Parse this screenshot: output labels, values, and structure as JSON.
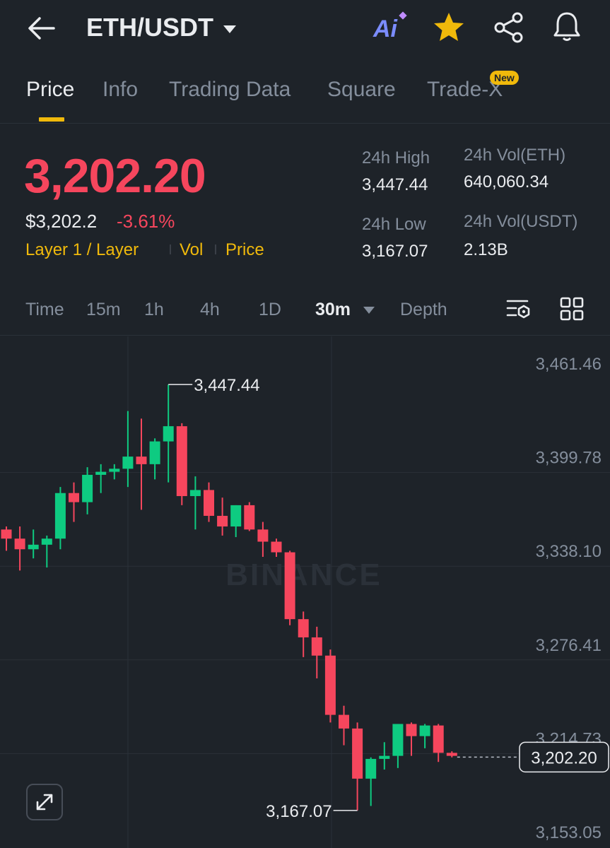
{
  "header": {
    "pair": "ETH/USDT",
    "ai_label": "Ai",
    "icons": [
      "back-arrow-icon",
      "ai-icon",
      "star-icon",
      "share-icon",
      "bell-icon"
    ]
  },
  "tabs": [
    {
      "label": "Price",
      "active": true
    },
    {
      "label": "Info"
    },
    {
      "label": "Trading Data"
    },
    {
      "label": "Square"
    },
    {
      "label": "Trade-X",
      "badge": "New"
    }
  ],
  "ticker": {
    "last_price": "3,202.20",
    "usd_price": "$3,202.2",
    "change_pct": "-3.61%",
    "tags": [
      "Layer 1 / Layer",
      "Vol",
      "Price"
    ],
    "high_label": "24h High",
    "high_value": "3,447.44",
    "low_label": "24h Low",
    "low_value": "3,167.07",
    "vol_base_label": "24h Vol(ETH)",
    "vol_base_value": "640,060.34",
    "vol_quote_label": "24h Vol(USDT)",
    "vol_quote_value": "2.13B"
  },
  "timeframes": {
    "items": [
      "Time",
      "15m",
      "1h",
      "4h",
      "1D",
      "30m",
      "Depth"
    ],
    "selected": "30m"
  },
  "colors": {
    "up": "#0ecb81",
    "down": "#f6465d",
    "accent": "#f0b90b",
    "background": "#1e2329"
  },
  "chart_data": {
    "type": "candlestick",
    "watermark": "BINANCE",
    "y_ticks": [
      3461.46,
      3399.78,
      3338.1,
      3276.41,
      3214.73,
      3153.05
    ],
    "y_tick_labels": [
      "3,461.46",
      "3,399.78",
      "3,338.10",
      "3,276.41",
      "3,214.73",
      "3,153.05"
    ],
    "ylim": [
      3153.05,
      3461.46
    ],
    "high_marker": {
      "value": 3447.44,
      "label": "3,447.44"
    },
    "low_marker": {
      "value": 3167.07,
      "label": "3,167.07"
    },
    "last_price_marker": {
      "value": 3202.2,
      "label": "3,202.20"
    },
    "candles": [
      {
        "o": 3352,
        "h": 3354,
        "l": 3338,
        "c": 3346
      },
      {
        "o": 3346,
        "h": 3354,
        "l": 3325,
        "c": 3339
      },
      {
        "o": 3339,
        "h": 3352,
        "l": 3333,
        "c": 3342
      },
      {
        "o": 3342,
        "h": 3348,
        "l": 3327,
        "c": 3346
      },
      {
        "o": 3346,
        "h": 3380,
        "l": 3339,
        "c": 3376
      },
      {
        "o": 3376,
        "h": 3383,
        "l": 3357,
        "c": 3370
      },
      {
        "o": 3370,
        "h": 3393,
        "l": 3362,
        "c": 3388
      },
      {
        "o": 3388,
        "h": 3395,
        "l": 3376,
        "c": 3390
      },
      {
        "o": 3390,
        "h": 3395,
        "l": 3385,
        "c": 3392
      },
      {
        "o": 3392,
        "h": 3430,
        "l": 3380,
        "c": 3400
      },
      {
        "o": 3400,
        "h": 3425,
        "l": 3365,
        "c": 3395
      },
      {
        "o": 3395,
        "h": 3412,
        "l": 3385,
        "c": 3410
      },
      {
        "o": 3410,
        "h": 3447.44,
        "l": 3383,
        "c": 3420
      },
      {
        "o": 3420,
        "h": 3422,
        "l": 3368,
        "c": 3374
      },
      {
        "o": 3374,
        "h": 3387,
        "l": 3352,
        "c": 3378
      },
      {
        "o": 3378,
        "h": 3383,
        "l": 3357,
        "c": 3361
      },
      {
        "o": 3361,
        "h": 3373,
        "l": 3348,
        "c": 3354
      },
      {
        "o": 3354,
        "h": 3368,
        "l": 3347,
        "c": 3368
      },
      {
        "o": 3368,
        "h": 3370,
        "l": 3351,
        "c": 3352
      },
      {
        "o": 3352,
        "h": 3357,
        "l": 3334,
        "c": 3344
      },
      {
        "o": 3344,
        "h": 3346,
        "l": 3334,
        "c": 3337
      },
      {
        "o": 3337,
        "h": 3338,
        "l": 3289,
        "c": 3293
      },
      {
        "o": 3293,
        "h": 3298,
        "l": 3268,
        "c": 3281
      },
      {
        "o": 3281,
        "h": 3288,
        "l": 3254,
        "c": 3269
      },
      {
        "o": 3269,
        "h": 3273,
        "l": 3225,
        "c": 3230
      },
      {
        "o": 3230,
        "h": 3236,
        "l": 3210,
        "c": 3221
      },
      {
        "o": 3221,
        "h": 3225,
        "l": 3167.07,
        "c": 3188
      },
      {
        "o": 3188,
        "h": 3202,
        "l": 3170,
        "c": 3201
      },
      {
        "o": 3201,
        "h": 3212,
        "l": 3194,
        "c": 3203
      },
      {
        "o": 3203,
        "h": 3224,
        "l": 3195,
        "c": 3224
      },
      {
        "o": 3224,
        "h": 3225,
        "l": 3203,
        "c": 3216
      },
      {
        "o": 3216,
        "h": 3224,
        "l": 3208,
        "c": 3223
      },
      {
        "o": 3223,
        "h": 3224,
        "l": 3199,
        "c": 3205
      },
      {
        "o": 3205,
        "h": 3206,
        "l": 3202,
        "c": 3203
      }
    ]
  }
}
